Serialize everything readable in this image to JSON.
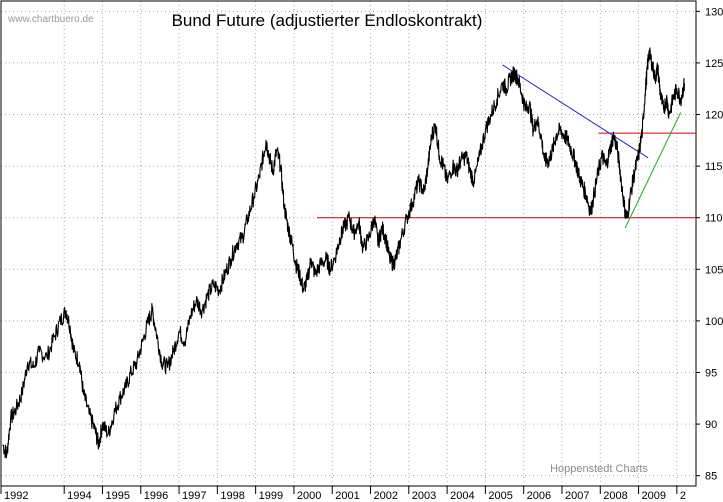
{
  "chart_data": {
    "type": "line",
    "title": "Bund Future (adjustierter Endloskontrakt)",
    "watermark": "www.chartbuero.de",
    "credit": "Hoppenstedt Charts",
    "xlabel": "",
    "ylabel": "",
    "xlim": [
      1992.0,
      2010.15
    ],
    "ylim": [
      84.0,
      131.0
    ],
    "y_ticks": [
      85,
      90,
      95,
      100,
      105,
      110,
      115,
      120,
      125,
      130
    ],
    "x_ticks": [
      "1992",
      "1994",
      "1995",
      "1996",
      "1997",
      "1998",
      "1999",
      "2000",
      "2001",
      "2002",
      "2003",
      "2004",
      "2005",
      "2006",
      "2007",
      "2008",
      "2009",
      "2"
    ],
    "x_tick_positions": [
      1992.0,
      1993.65,
      1994.65,
      1995.65,
      1996.65,
      1997.65,
      1998.65,
      1999.65,
      2000.65,
      2001.65,
      2002.65,
      2003.65,
      2004.65,
      2005.65,
      2006.65,
      2007.65,
      2008.65,
      2009.65
    ],
    "grid": true,
    "legend": "none",
    "series": [
      {
        "color": "#000000",
        "points": [
          [
            1992.05,
            88.0
          ],
          [
            1992.15,
            87.0
          ],
          [
            1992.25,
            90.5
          ],
          [
            1992.4,
            91.5
          ],
          [
            1992.55,
            93.0
          ],
          [
            1992.7,
            96.0
          ],
          [
            1992.85,
            95.5
          ],
          [
            1993.0,
            97.0
          ],
          [
            1993.2,
            96.5
          ],
          [
            1993.4,
            98.5
          ],
          [
            1993.55,
            100.0
          ],
          [
            1993.7,
            101.0
          ],
          [
            1993.8,
            99.5
          ],
          [
            1993.9,
            97.0
          ],
          [
            1994.05,
            96.0
          ],
          [
            1994.15,
            93.0
          ],
          [
            1994.3,
            91.0
          ],
          [
            1994.45,
            89.5
          ],
          [
            1994.55,
            88.0
          ],
          [
            1994.65,
            90.0
          ],
          [
            1994.8,
            89.0
          ],
          [
            1994.95,
            91.0
          ],
          [
            1995.1,
            92.5
          ],
          [
            1995.25,
            93.5
          ],
          [
            1995.4,
            95.0
          ],
          [
            1995.55,
            96.0
          ],
          [
            1995.7,
            98.0
          ],
          [
            1995.85,
            100.0
          ],
          [
            1995.95,
            101.0
          ],
          [
            1996.05,
            99.0
          ],
          [
            1996.2,
            96.0
          ],
          [
            1996.35,
            95.5
          ],
          [
            1996.5,
            97.0
          ],
          [
            1996.65,
            99.0
          ],
          [
            1996.8,
            98.0
          ],
          [
            1996.95,
            100.5
          ],
          [
            1997.1,
            102.0
          ],
          [
            1997.25,
            101.0
          ],
          [
            1997.4,
            102.5
          ],
          [
            1997.55,
            103.5
          ],
          [
            1997.7,
            103.0
          ],
          [
            1997.85,
            104.5
          ],
          [
            1998.0,
            106.0
          ],
          [
            1998.15,
            107.5
          ],
          [
            1998.3,
            108.0
          ],
          [
            1998.45,
            110.0
          ],
          [
            1998.6,
            112.0
          ],
          [
            1998.75,
            114.0
          ],
          [
            1998.85,
            116.0
          ],
          [
            1998.92,
            117.5
          ],
          [
            1999.0,
            116.0
          ],
          [
            1999.1,
            114.5
          ],
          [
            1999.2,
            116.5
          ],
          [
            1999.3,
            115.0
          ],
          [
            1999.4,
            111.0
          ],
          [
            1999.5,
            109.0
          ],
          [
            1999.6,
            107.5
          ],
          [
            1999.7,
            105.5
          ],
          [
            1999.8,
            104.5
          ],
          [
            1999.9,
            103.0
          ],
          [
            2000.0,
            104.0
          ],
          [
            2000.1,
            106.0
          ],
          [
            2000.2,
            104.5
          ],
          [
            2000.35,
            105.5
          ],
          [
            2000.5,
            106.0
          ],
          [
            2000.6,
            105.0
          ],
          [
            2000.75,
            106.5
          ],
          [
            2000.85,
            108.0
          ],
          [
            2000.95,
            109.0
          ],
          [
            2001.1,
            110.0
          ],
          [
            2001.2,
            108.5
          ],
          [
            2001.35,
            109.5
          ],
          [
            2001.45,
            107.0
          ],
          [
            2001.6,
            108.0
          ],
          [
            2001.75,
            110.0
          ],
          [
            2001.85,
            107.5
          ],
          [
            2001.95,
            109.0
          ],
          [
            2002.05,
            108.0
          ],
          [
            2002.15,
            106.0
          ],
          [
            2002.25,
            105.5
          ],
          [
            2002.35,
            106.5
          ],
          [
            2002.45,
            108.0
          ],
          [
            2002.6,
            110.0
          ],
          [
            2002.75,
            111.5
          ],
          [
            2002.9,
            113.5
          ],
          [
            2003.05,
            112.5
          ],
          [
            2003.15,
            115.0
          ],
          [
            2003.25,
            118.0
          ],
          [
            2003.35,
            119.0
          ],
          [
            2003.45,
            116.0
          ],
          [
            2003.55,
            115.0
          ],
          [
            2003.65,
            113.5
          ],
          [
            2003.8,
            115.0
          ],
          [
            2003.9,
            114.5
          ],
          [
            2004.0,
            115.5
          ],
          [
            2004.15,
            116.0
          ],
          [
            2004.25,
            114.5
          ],
          [
            2004.35,
            113.5
          ],
          [
            2004.5,
            116.0
          ],
          [
            2004.65,
            118.5
          ],
          [
            2004.8,
            120.0
          ],
          [
            2004.95,
            121.5
          ],
          [
            2005.1,
            123.0
          ],
          [
            2005.2,
            122.5
          ],
          [
            2005.3,
            123.5
          ],
          [
            2005.4,
            124.0
          ],
          [
            2005.5,
            123.5
          ],
          [
            2005.6,
            122.0
          ],
          [
            2005.7,
            120.5
          ],
          [
            2005.8,
            121.0
          ],
          [
            2005.9,
            118.5
          ],
          [
            2006.0,
            119.5
          ],
          [
            2006.1,
            118.0
          ],
          [
            2006.2,
            115.5
          ],
          [
            2006.3,
            115.5
          ],
          [
            2006.4,
            116.5
          ],
          [
            2006.5,
            118.0
          ],
          [
            2006.6,
            118.5
          ],
          [
            2006.7,
            118.0
          ],
          [
            2006.8,
            117.5
          ],
          [
            2006.9,
            116.5
          ],
          [
            2007.0,
            115.5
          ],
          [
            2007.1,
            114.0
          ],
          [
            2007.2,
            113.0
          ],
          [
            2007.3,
            112.0
          ],
          [
            2007.4,
            110.5
          ],
          [
            2007.5,
            112.5
          ],
          [
            2007.6,
            114.5
          ],
          [
            2007.7,
            116.0
          ],
          [
            2007.8,
            115.0
          ],
          [
            2007.9,
            116.5
          ],
          [
            2008.0,
            118.0
          ],
          [
            2008.1,
            116.5
          ],
          [
            2008.2,
            113.5
          ],
          [
            2008.3,
            110.5
          ],
          [
            2008.35,
            110.0
          ],
          [
            2008.45,
            112.5
          ],
          [
            2008.55,
            114.5
          ],
          [
            2008.65,
            116.0
          ],
          [
            2008.75,
            118.5
          ],
          [
            2008.82,
            122.0
          ],
          [
            2008.88,
            124.5
          ],
          [
            2008.92,
            126.0
          ],
          [
            2009.0,
            125.0
          ],
          [
            2009.08,
            123.5
          ],
          [
            2009.15,
            124.5
          ],
          [
            2009.22,
            122.0
          ],
          [
            2009.3,
            120.5
          ],
          [
            2009.38,
            121.5
          ],
          [
            2009.45,
            120.0
          ],
          [
            2009.55,
            121.5
          ],
          [
            2009.65,
            122.5
          ],
          [
            2009.75,
            121.5
          ],
          [
            2009.85,
            123.0
          ]
        ]
      }
    ],
    "annotations": [
      {
        "type": "horizontal-line",
        "color": "#d40000",
        "y": 110,
        "x": [
          2000.25,
          2010.15
        ]
      },
      {
        "type": "horizontal-line",
        "color": "#d40000",
        "y": 118.2,
        "x": [
          2007.6,
          2010.15
        ]
      },
      {
        "type": "trend-line",
        "color": "#2222cc",
        "from": [
          2005.1,
          124.8
        ],
        "to": [
          2008.9,
          115.8
        ]
      },
      {
        "type": "trend-line",
        "color": "#22aa22",
        "from": [
          2008.3,
          109.0
        ],
        "to": [
          2009.75,
          120.2
        ]
      }
    ]
  }
}
